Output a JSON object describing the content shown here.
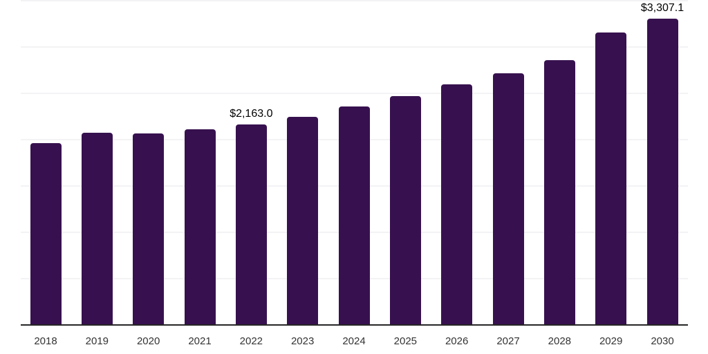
{
  "chart_data": {
    "type": "bar",
    "title": "",
    "xlabel": "",
    "ylabel": "",
    "categories": [
      "2018",
      "2019",
      "2020",
      "2021",
      "2022",
      "2023",
      "2024",
      "2025",
      "2026",
      "2027",
      "2028",
      "2029",
      "2030"
    ],
    "values": [
      1960,
      2075,
      2070,
      2110,
      2163.0,
      2250,
      2355,
      2470,
      2595,
      2720,
      2855,
      3155,
      3307.1
    ],
    "ylim": [
      0,
      3500
    ],
    "gridline_step": 500,
    "grid": "horizontal-faint",
    "legend": "none",
    "annotations": [
      {
        "category": "2022",
        "text": "$2,163.0"
      },
      {
        "category": "2030",
        "text": "$3,307.1"
      }
    ],
    "colors": {
      "bar": "#37114F",
      "axis_line": "#262626",
      "gridline": "#f3f3f5",
      "year_label": "#333333",
      "data_label": "#000000",
      "background": "#ffffff"
    }
  }
}
